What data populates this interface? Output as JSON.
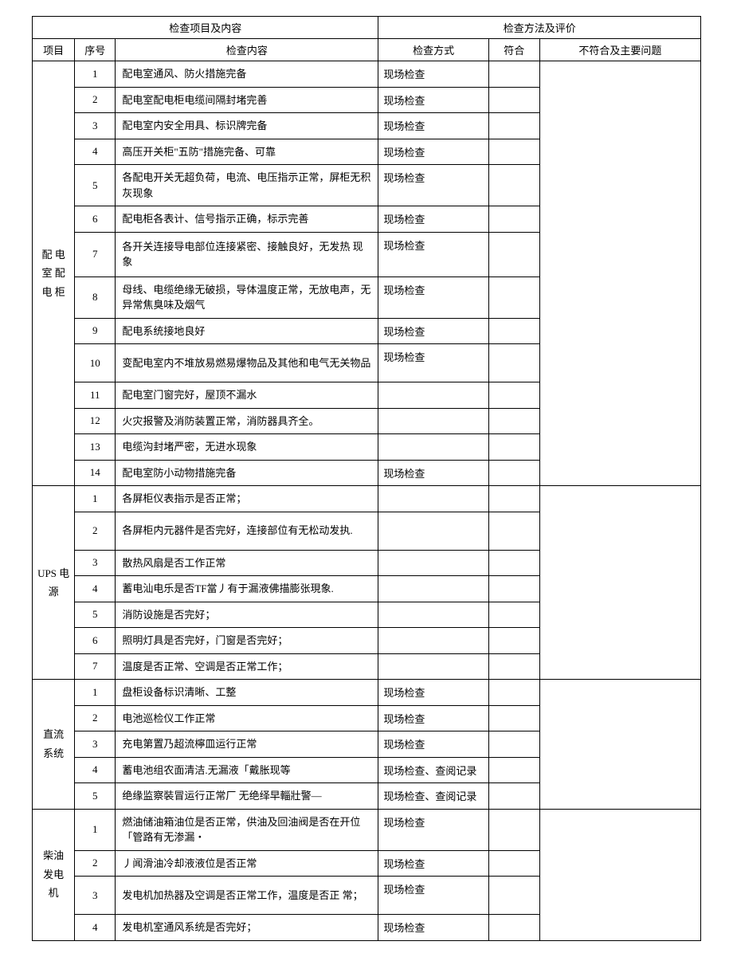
{
  "header": {
    "left": "检查项目及内容",
    "right": "检查方法及评价",
    "col_project": "项目",
    "col_seq": "序号",
    "col_content": "检查内容",
    "col_method": "检查方式",
    "col_comply": "符合",
    "col_notes": "不符合及主要问题"
  },
  "sections": [
    {
      "name": "配 电 室 配电 柜",
      "rows": [
        {
          "seq": "1",
          "content": "配电室通风、防火措施完备",
          "method": "现场检查"
        },
        {
          "seq": "2",
          "content": "配电室配电柜电缆间隔封堵完善",
          "method": "现场检查"
        },
        {
          "seq": "3",
          "content": "配电室内安全用具、标识牌完备",
          "method": "现场检查"
        },
        {
          "seq": "4",
          "content": "高压开关柜\"五防\"措施完备、可靠",
          "method": "现场检查"
        },
        {
          "seq": "5",
          "content": " 各配电开关无超负荷，电流、电压指示正常，屏柜无积灰现象",
          "method": "现场检查",
          "tall": true
        },
        {
          "seq": "6",
          "content": "配电柜各表计、信号指示正确，标示完善",
          "method": "现场检查"
        },
        {
          "seq": "7",
          "content": " 各开关连接导电部位连接紧密、接触良好，无发热 现象",
          "method": "现场检查",
          "taller": true
        },
        {
          "seq": "8",
          "content": "母线、电缆绝缘无破损，导体温度正常，无放电声，无异常焦臭味及烟气",
          "method": "现场检查",
          "tall": true
        },
        {
          "seq": "9",
          "content": "配电系统接地良好",
          "method": "现场检查"
        },
        {
          "seq": "10",
          "content": "变配电室内不堆放易燃易爆物品及其他和电气无关物品",
          "method": "现场检查",
          "tall": true
        },
        {
          "seq": "11",
          "content": "配电室门窗完好，屋顶不漏水",
          "method": ""
        },
        {
          "seq": "12",
          "content": "火灾报警及消防装置正常，消防器具齐全。",
          "method": ""
        },
        {
          "seq": "13",
          "content": "电缆沟封堵严密，无进水现象",
          "method": ""
        },
        {
          "seq": "14",
          "content": "配电室防小动物措施完备",
          "method": "现场检查"
        }
      ]
    },
    {
      "name": "UPS 电源",
      "rows": [
        {
          "seq": "1",
          "content": "各屏柜仪表指示是否正常；",
          "method": ""
        },
        {
          "seq": "2",
          "content": "各屏柜内元器件是否完好，连接部位有无松动发执.",
          "method": "",
          "tall": true
        },
        {
          "seq": "3",
          "content": "散热风扇是否工作正常",
          "method": ""
        },
        {
          "seq": "4",
          "content": "蓄电汕电乐是否TF當丿有于漏液佛描膨张現象.",
          "method": ""
        },
        {
          "seq": "5",
          "content": "消防设施是否完好；",
          "method": ""
        },
        {
          "seq": "6",
          "content": "照明灯具是否完好，门窗是否完好；",
          "method": ""
        },
        {
          "seq": "7",
          "content": "温度是否正常、空调是否正常工作；",
          "method": ""
        }
      ]
    },
    {
      "name": "直流 系统",
      "rows": [
        {
          "seq": "1",
          "content": "盘柜设备标识清晰、工整",
          "method": "现场检查"
        },
        {
          "seq": "2",
          "content": "电池巡检仪工作正常",
          "method": "现场检查"
        },
        {
          "seq": "3",
          "content": "充电第置乃超流檸皿运行正常",
          "method": "现场检查"
        },
        {
          "seq": "4",
          "content": "蓄电池组农面清洁.无漏液「戴胀现等",
          "method": "现场检查、查阅记录"
        },
        {
          "seq": "5",
          "content": "绝缘监察裝冒运行正常厂 无绝绎早輜壯警—",
          "method": "现场检查、查阅记录"
        }
      ]
    },
    {
      "name": "柴油 发电 机",
      "rows": [
        {
          "seq": "1",
          "content": " 燃油储油箱油位是否正常，供油及回油阀是否在开位「管路有无渗漏・",
          "method": "现场检查",
          "tall": true
        },
        {
          "seq": "2",
          "content": "丿闻滑油冷却液液位是否正常",
          "method": "现场检查"
        },
        {
          "seq": "3",
          "content": " 发电机加热器及空调是否正常工作，温度是否正 常；",
          "method": "现场检查",
          "tall": true
        },
        {
          "seq": "4",
          "content": "发电机室通风系统是否完好；",
          "method": "现场检查"
        }
      ]
    }
  ]
}
